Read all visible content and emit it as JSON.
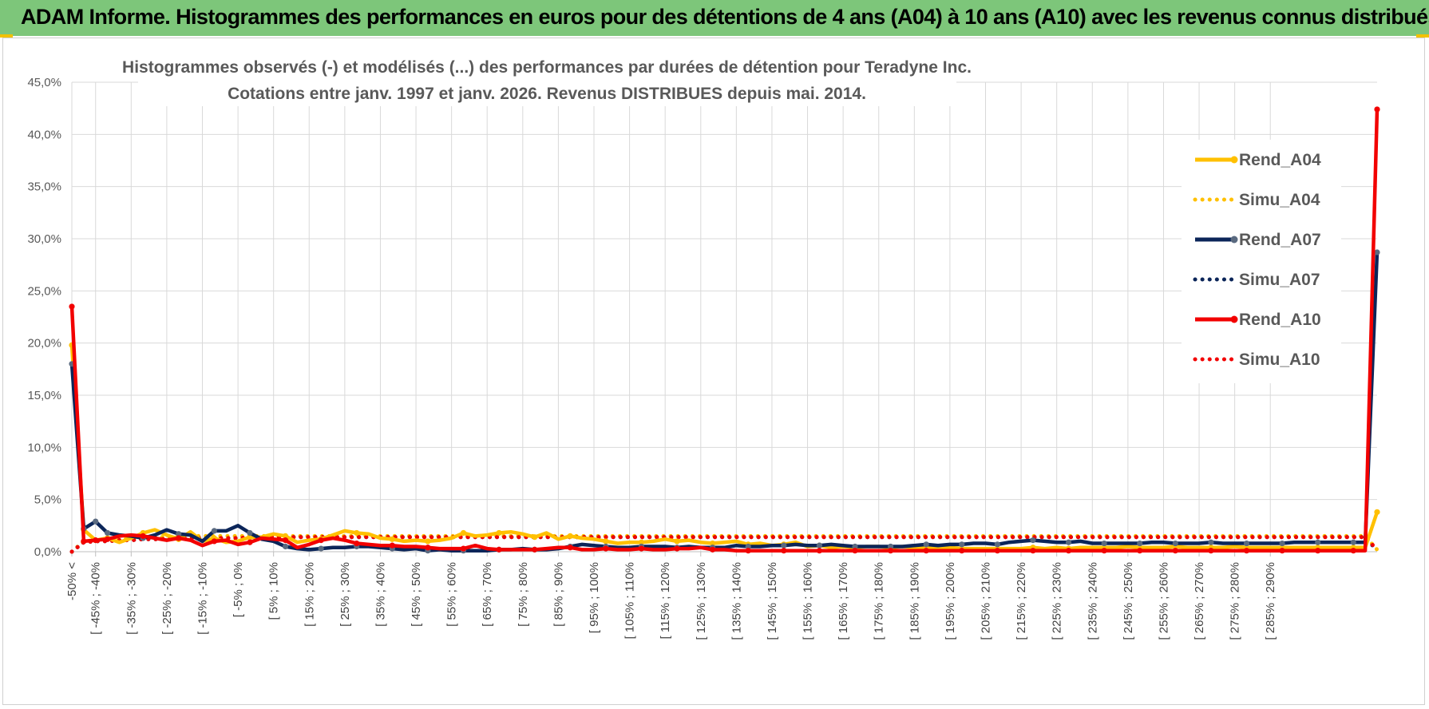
{
  "banner": {
    "title": "ADAM Informe. Histogrammes des performances en euros pour des détentions de 4 ans (A04) à 10 ans (A10) avec les revenus connus distribués"
  },
  "colors": {
    "banner_bg": "#7dc67a",
    "A04": "#ffc000",
    "A07": "#0b2559",
    "A10": "#f20000",
    "grid": "#d9d9d9",
    "marker_A07": "#5a6a80"
  },
  "chart_data": {
    "type": "line",
    "title": [
      "Histogrammes observés (-) et modélisés (...) des performances par durées de détention pour Teradyne Inc.",
      "Cotations entre janv. 1997 et janv. 2026. Revenus DISTRIBUES depuis mai. 2014."
    ],
    "xlabel": "",
    "ylabel": "",
    "ylim": [
      0,
      45
    ],
    "y_ticks": [
      "0,0%",
      "5,0%",
      "10,0%",
      "15,0%",
      "20,0%",
      "25,0%",
      "30,0%",
      "35,0%",
      "40,0%",
      "45,0%"
    ],
    "x_labels": [
      "-50% <",
      "[ -45% ; -40%",
      "[ -35% ; -30%",
      "[ -25% ; -20%",
      "[ -15% ; -10%",
      "[ -5% ; 0%",
      "[ 5% ; 10%",
      "[ 15% ; 20%",
      "[ 25% ; 30%",
      "[ 35% ; 40%",
      "[ 45% ; 50%",
      "[ 55% ; 60%",
      "[ 65% ; 70%",
      "[ 75% ; 80%",
      "[ 85% ; 90%",
      "[ 95% ; 100%",
      "[ 105% ; 110%",
      "[ 115% ; 120%",
      "[ 125% ; 130%",
      "[ 135% ; 140%",
      "[ 145% ; 150%",
      "[ 155% ; 160%",
      "[ 165% ; 170%",
      "[ 175% ; 180%",
      "[ 185% ; 190%",
      "[ 195% ; 200%",
      "[ 205% ; 210%",
      "[ 215% ; 220%",
      "[ 225% ; 230%",
      "[ 235% ; 240%",
      "[ 245% ; 250%",
      "[ 255% ; 260%",
      "[ 265% ; 270%",
      "[ 275% ; 280%",
      "[ 285% ; 290%"
    ],
    "series": [
      {
        "name": "Rend_A04",
        "style": "solid",
        "color": "#ffc000",
        "values": [
          19.8,
          2.1,
          1.1,
          1.3,
          0.9,
          1.3,
          1.8,
          2.1,
          1.6,
          1.2,
          1.9,
          1.0,
          1.3,
          0.9,
          1.0,
          1.4,
          1.4,
          1.7,
          1.5,
          0.9,
          1.1,
          1.2,
          1.6,
          2.0,
          1.8,
          1.7,
          1.3,
          1.2,
          1.0,
          1.1,
          1.0,
          1.1,
          1.3,
          1.8,
          1.5,
          1.6,
          1.8,
          1.9,
          1.7,
          1.4,
          1.8,
          1.2,
          1.5,
          1.3,
          1.2,
          1.0,
          0.8,
          0.9,
          0.9,
          1.0,
          1.2,
          1.0,
          1.1,
          0.9,
          0.8,
          0.9,
          1.0,
          0.7,
          0.8,
          0.6,
          0.7,
          0.9,
          0.5,
          0.6,
          0.4,
          0.5,
          0.4,
          0.5,
          0.5,
          0.4,
          0.5,
          0.4,
          0.4,
          0.3,
          0.4,
          0.3,
          0.3,
          0.3,
          0.3,
          0.3,
          0.3,
          0.4,
          0.3,
          0.4,
          0.3,
          0.4,
          0.4,
          0.4,
          0.4,
          0.5,
          0.4,
          0.4,
          0.4,
          0.5,
          0.4,
          0.4,
          0.4,
          0.4,
          0.5,
          0.4,
          0.4,
          0.4,
          0.4,
          0.4,
          0.4,
          0.4,
          0.4,
          0.4,
          0.4,
          0.4,
          3.8
        ]
      },
      {
        "name": "Simu_A04",
        "style": "dotted",
        "color": "#ffc000",
        "values": [
          0.0,
          1.0,
          1.1,
          1.2,
          1.2,
          1.3,
          1.3,
          1.4,
          1.4,
          1.4,
          1.5,
          1.5,
          1.5,
          1.5,
          1.5,
          1.5,
          1.5,
          1.5,
          1.5,
          1.5,
          1.5,
          1.5,
          1.5,
          1.5,
          1.5,
          1.5,
          1.5,
          1.5,
          1.5,
          1.5,
          1.5,
          1.5,
          1.5,
          1.5,
          1.5,
          1.5,
          1.5,
          1.5,
          1.5,
          1.5,
          1.5,
          1.5,
          1.5,
          1.5,
          1.5,
          1.5,
          1.5,
          1.5,
          1.5,
          1.5,
          1.5,
          1.5,
          1.5,
          1.5,
          1.5,
          1.5,
          1.5,
          1.5,
          1.5,
          1.5,
          1.5,
          1.5,
          1.5,
          1.5,
          1.5,
          1.5,
          1.5,
          1.5,
          1.5,
          1.5,
          1.5,
          1.5,
          1.5,
          1.5,
          1.5,
          1.5,
          1.5,
          1.5,
          1.5,
          1.5,
          1.5,
          1.5,
          1.5,
          1.5,
          1.5,
          1.5,
          1.5,
          1.5,
          1.5,
          1.5,
          1.5,
          1.5,
          1.5,
          1.5,
          1.5,
          1.5,
          1.5,
          1.5,
          1.5,
          1.5,
          1.5,
          1.5,
          1.5,
          1.5,
          1.5,
          1.5,
          1.5,
          1.5,
          1.5,
          1.5,
          0.2
        ]
      },
      {
        "name": "Rend_A07",
        "style": "solid",
        "color": "#0b2559",
        "values": [
          18.0,
          2.2,
          2.9,
          1.8,
          1.6,
          1.5,
          1.3,
          1.6,
          2.1,
          1.7,
          1.6,
          1.0,
          2.0,
          2.0,
          2.5,
          1.8,
          1.2,
          1.0,
          0.5,
          0.3,
          0.2,
          0.3,
          0.4,
          0.4,
          0.5,
          0.5,
          0.4,
          0.3,
          0.2,
          0.3,
          0.1,
          0.2,
          0.1,
          0.1,
          0.1,
          0.1,
          0.2,
          0.2,
          0.3,
          0.2,
          0.2,
          0.3,
          0.5,
          0.7,
          0.6,
          0.5,
          0.4,
          0.4,
          0.5,
          0.5,
          0.5,
          0.4,
          0.5,
          0.4,
          0.4,
          0.4,
          0.6,
          0.5,
          0.5,
          0.6,
          0.6,
          0.7,
          0.6,
          0.6,
          0.7,
          0.6,
          0.5,
          0.5,
          0.5,
          0.5,
          0.5,
          0.6,
          0.7,
          0.6,
          0.7,
          0.7,
          0.8,
          0.8,
          0.7,
          0.9,
          1.0,
          1.1,
          1.0,
          0.9,
          0.9,
          1.0,
          0.8,
          0.8,
          0.8,
          0.8,
          0.8,
          0.9,
          0.9,
          0.8,
          0.8,
          0.8,
          0.9,
          0.8,
          0.8,
          0.8,
          0.8,
          0.8,
          0.8,
          0.9,
          0.9,
          0.9,
          0.9,
          0.9,
          0.9,
          0.9,
          28.7
        ]
      },
      {
        "name": "Simu_A07",
        "style": "dotted",
        "color": "#0b2559",
        "values": [
          0.0,
          0.9,
          1.0,
          1.0,
          1.1,
          1.1,
          1.2,
          1.2,
          1.2,
          1.3,
          1.3,
          1.3,
          1.3,
          1.3,
          1.3,
          1.3,
          1.4,
          1.4,
          1.4,
          1.4,
          1.4,
          1.4,
          1.4,
          1.4,
          1.4,
          1.4,
          1.4,
          1.4,
          1.4,
          1.4,
          1.4,
          1.4,
          1.4,
          1.4,
          1.4,
          1.4,
          1.4,
          1.4,
          1.4,
          1.4,
          1.4,
          1.4,
          1.4,
          1.4,
          1.4,
          1.4,
          1.4,
          1.4,
          1.4,
          1.4,
          1.4,
          1.4,
          1.4,
          1.4,
          1.4,
          1.4,
          1.4,
          1.4,
          1.4,
          1.4,
          1.4,
          1.4,
          1.4,
          1.4,
          1.4,
          1.4,
          1.4,
          1.4,
          1.4,
          1.4,
          1.4,
          1.4,
          1.4,
          1.4,
          1.4,
          1.4,
          1.4,
          1.4,
          1.4,
          1.4,
          1.4,
          1.4,
          1.4,
          1.4,
          1.4,
          1.4,
          1.4,
          1.4,
          1.4,
          1.4,
          1.4,
          1.4,
          1.4,
          1.4,
          1.4,
          1.4,
          1.4,
          1.4,
          1.4,
          1.4,
          1.4,
          1.4,
          1.4,
          1.4,
          1.4,
          1.4,
          1.4,
          1.4,
          1.4,
          1.4,
          0.1
        ]
      },
      {
        "name": "Rend_A10",
        "style": "solid",
        "color": "#f20000",
        "values": [
          23.5,
          1.0,
          1.1,
          1.2,
          1.5,
          1.6,
          1.5,
          1.3,
          1.1,
          1.3,
          1.1,
          0.6,
          1.0,
          1.1,
          0.7,
          0.9,
          1.3,
          1.2,
          1.1,
          0.4,
          0.7,
          1.1,
          1.3,
          1.1,
          0.8,
          0.7,
          0.6,
          0.6,
          0.5,
          0.5,
          0.4,
          0.3,
          0.3,
          0.3,
          0.6,
          0.3,
          0.2,
          0.2,
          0.2,
          0.2,
          0.3,
          0.4,
          0.4,
          0.2,
          0.2,
          0.3,
          0.2,
          0.2,
          0.3,
          0.2,
          0.2,
          0.3,
          0.3,
          0.4,
          0.2,
          0.2,
          0.1,
          0.1,
          0.1,
          0.1,
          0.1,
          0.1,
          0.1,
          0.1,
          0.1,
          0.1,
          0.1,
          0.1,
          0.1,
          0.1,
          0.1,
          0.1,
          0.1,
          0.1,
          0.1,
          0.1,
          0.1,
          0.1,
          0.1,
          0.1,
          0.1,
          0.1,
          0.1,
          0.1,
          0.1,
          0.1,
          0.1,
          0.1,
          0.1,
          0.1,
          0.1,
          0.1,
          0.1,
          0.1,
          0.1,
          0.1,
          0.1,
          0.1,
          0.1,
          0.1,
          0.1,
          0.1,
          0.1,
          0.1,
          0.1,
          0.1,
          0.1,
          0.1,
          0.1,
          0.1,
          42.4
        ]
      },
      {
        "name": "Simu_A10",
        "style": "dotted",
        "color": "#f20000",
        "values": [
          0.0,
          0.9,
          1.0,
          1.0,
          1.1,
          1.1,
          1.2,
          1.2,
          1.2,
          1.3,
          1.3,
          1.3,
          1.3,
          1.3,
          1.3,
          1.4,
          1.4,
          1.4,
          1.4,
          1.4,
          1.4,
          1.4,
          1.4,
          1.4,
          1.4,
          1.4,
          1.4,
          1.4,
          1.4,
          1.4,
          1.4,
          1.4,
          1.4,
          1.4,
          1.4,
          1.4,
          1.4,
          1.4,
          1.4,
          1.4,
          1.4,
          1.4,
          1.4,
          1.4,
          1.4,
          1.4,
          1.4,
          1.4,
          1.4,
          1.4,
          1.4,
          1.4,
          1.4,
          1.4,
          1.4,
          1.4,
          1.4,
          1.4,
          1.4,
          1.4,
          1.4,
          1.4,
          1.4,
          1.4,
          1.4,
          1.4,
          1.4,
          1.4,
          1.4,
          1.4,
          1.4,
          1.4,
          1.4,
          1.4,
          1.4,
          1.4,
          1.4,
          1.4,
          1.4,
          1.4,
          1.4,
          1.4,
          1.4,
          1.4,
          1.4,
          1.4,
          1.4,
          1.4,
          1.4,
          1.4,
          1.4,
          1.4,
          1.4,
          1.4,
          1.4,
          1.4,
          1.4,
          1.4,
          1.4,
          1.4,
          1.4,
          1.4,
          1.4,
          1.4,
          1.4,
          1.4,
          1.4,
          1.4,
          1.4,
          1.4,
          0.2
        ]
      }
    ],
    "legend": [
      "Rend_A04",
      "Simu_A04",
      "Rend_A07",
      "Simu_A07",
      "Rend_A10",
      "Simu_A10"
    ],
    "legend_position": "right"
  }
}
